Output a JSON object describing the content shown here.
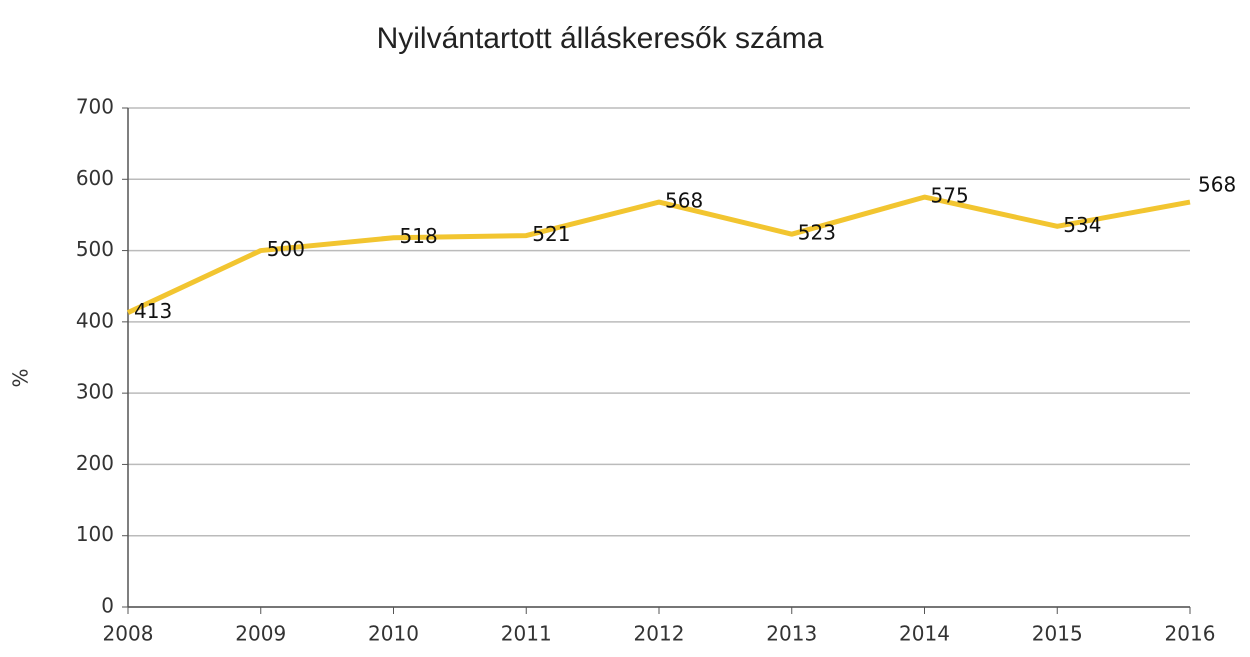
{
  "chart_data": {
    "type": "line",
    "title": "Nyilvántartott álláskeresők száma",
    "y_label": "%",
    "categories": [
      "2008",
      "2009",
      "2010",
      "2011",
      "2012",
      "2013",
      "2014",
      "2015",
      "2016"
    ],
    "values": [
      413,
      500,
      518,
      521,
      568,
      523,
      575,
      534,
      568
    ],
    "color": "#f2c530",
    "ylim": [
      0,
      700
    ],
    "yticks": [
      0,
      100,
      200,
      300,
      400,
      500,
      600,
      700
    ],
    "grid": true
  }
}
